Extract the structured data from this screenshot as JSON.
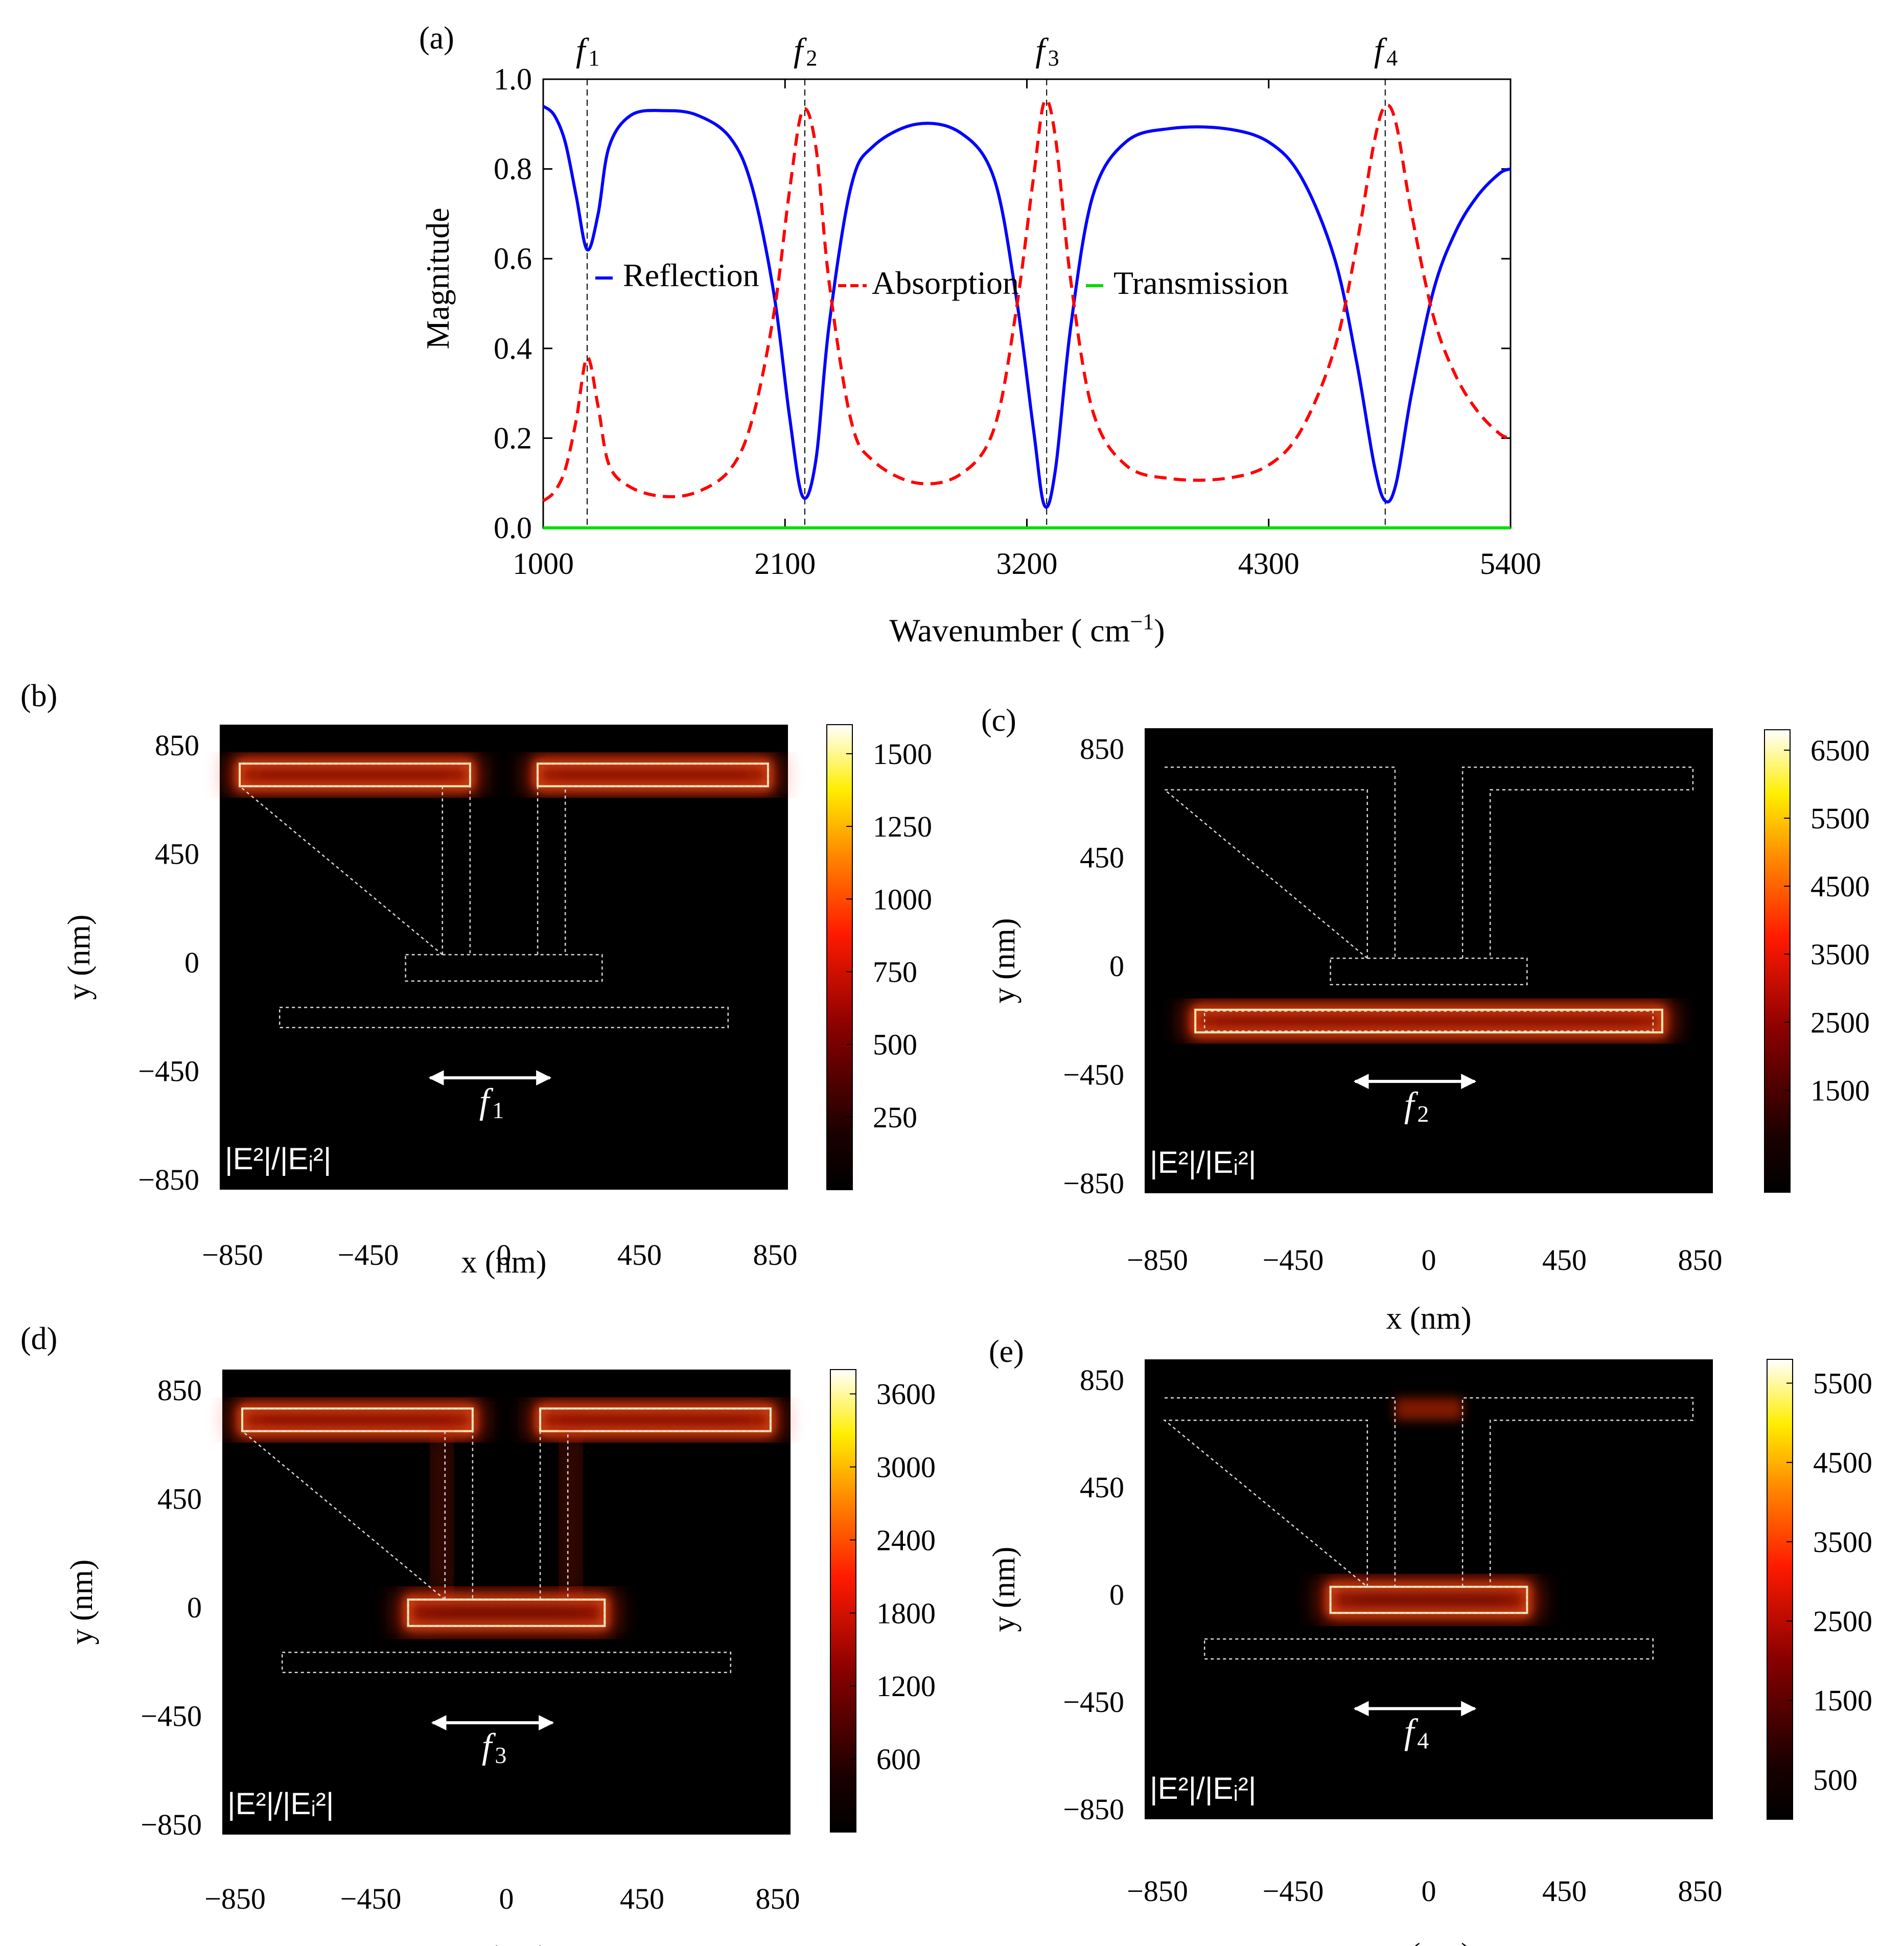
{
  "chart_data": [
    {
      "panel": "(a)",
      "type": "line",
      "xlabel": "Wavenumber ( cm",
      "xlabel_sup": "−1",
      "xlabel_end": ")",
      "ylabel": "Magnitude",
      "xlim": [
        1000,
        5400
      ],
      "ylim": [
        0,
        1
      ],
      "xticks": [
        1000,
        2100,
        3200,
        4300,
        5400
      ],
      "yticks": [
        "0.0",
        "0.2",
        "0.4",
        "0.6",
        "0.8",
        "1.0"
      ],
      "markers": [
        {
          "label": "f",
          "sub": "1",
          "x": 1200
        },
        {
          "label": "f",
          "sub": "2",
          "x": 2190
        },
        {
          "label": "f",
          "sub": "3",
          "x": 3290
        },
        {
          "label": "f",
          "sub": "4",
          "x": 4830
        }
      ],
      "series": [
        {
          "name": "Reflection",
          "color": "#0000ff",
          "style": "solid",
          "points": [
            [
              1000,
              0.94
            ],
            [
              1050,
              0.92
            ],
            [
              1100,
              0.86
            ],
            [
              1150,
              0.74
            ],
            [
              1200,
              0.62
            ],
            [
              1250,
              0.7
            ],
            [
              1300,
              0.85
            ],
            [
              1400,
              0.92
            ],
            [
              1550,
              0.93
            ],
            [
              1700,
              0.92
            ],
            [
              1850,
              0.87
            ],
            [
              1950,
              0.76
            ],
            [
              2050,
              0.52
            ],
            [
              2120,
              0.25
            ],
            [
              2180,
              0.07
            ],
            [
              2240,
              0.15
            ],
            [
              2300,
              0.45
            ],
            [
              2400,
              0.76
            ],
            [
              2500,
              0.85
            ],
            [
              2700,
              0.9
            ],
            [
              2900,
              0.88
            ],
            [
              3050,
              0.78
            ],
            [
              3150,
              0.52
            ],
            [
              3230,
              0.22
            ],
            [
              3280,
              0.05
            ],
            [
              3330,
              0.13
            ],
            [
              3400,
              0.45
            ],
            [
              3500,
              0.74
            ],
            [
              3650,
              0.86
            ],
            [
              3850,
              0.89
            ],
            [
              4100,
              0.89
            ],
            [
              4300,
              0.86
            ],
            [
              4450,
              0.78
            ],
            [
              4600,
              0.6
            ],
            [
              4700,
              0.37
            ],
            [
              4780,
              0.14
            ],
            [
              4830,
              0.06
            ],
            [
              4880,
              0.1
            ],
            [
              4950,
              0.3
            ],
            [
              5050,
              0.53
            ],
            [
              5150,
              0.66
            ],
            [
              5250,
              0.74
            ],
            [
              5350,
              0.79
            ],
            [
              5400,
              0.8
            ]
          ]
        },
        {
          "name": "Absorption",
          "color": "#ff0000",
          "style": "dashed",
          "points": [
            [
              1000,
              0.06
            ],
            [
              1050,
              0.08
            ],
            [
              1100,
              0.13
            ],
            [
              1150,
              0.24
            ],
            [
              1200,
              0.38
            ],
            [
              1250,
              0.27
            ],
            [
              1300,
              0.14
            ],
            [
              1400,
              0.09
            ],
            [
              1550,
              0.07
            ],
            [
              1700,
              0.08
            ],
            [
              1850,
              0.13
            ],
            [
              1950,
              0.24
            ],
            [
              2050,
              0.48
            ],
            [
              2120,
              0.75
            ],
            [
              2180,
              0.93
            ],
            [
              2240,
              0.85
            ],
            [
              2300,
              0.55
            ],
            [
              2400,
              0.24
            ],
            [
              2500,
              0.15
            ],
            [
              2700,
              0.1
            ],
            [
              2900,
              0.12
            ],
            [
              3050,
              0.22
            ],
            [
              3150,
              0.48
            ],
            [
              3230,
              0.78
            ],
            [
              3280,
              0.95
            ],
            [
              3330,
              0.87
            ],
            [
              3400,
              0.55
            ],
            [
              3500,
              0.26
            ],
            [
              3650,
              0.14
            ],
            [
              3850,
              0.11
            ],
            [
              4100,
              0.11
            ],
            [
              4300,
              0.14
            ],
            [
              4450,
              0.22
            ],
            [
              4600,
              0.4
            ],
            [
              4700,
              0.63
            ],
            [
              4780,
              0.86
            ],
            [
              4830,
              0.94
            ],
            [
              4880,
              0.9
            ],
            [
              4950,
              0.7
            ],
            [
              5050,
              0.47
            ],
            [
              5150,
              0.34
            ],
            [
              5250,
              0.26
            ],
            [
              5350,
              0.21
            ],
            [
              5400,
              0.2
            ]
          ]
        },
        {
          "name": "Transmission",
          "color": "#00dd00",
          "style": "solid",
          "points": [
            [
              1000,
              0.0
            ],
            [
              5400,
              0.0
            ]
          ]
        }
      ]
    },
    {
      "panel": "(b)",
      "type": "heatmap",
      "freq_label": "f",
      "freq_sub": "1",
      "field_label": "|E²|/|Eᵢ²|",
      "xlabel": "x (nm)",
      "ylabel": "y (nm)",
      "xticks": [
        "−850",
        "−450",
        "0",
        "450",
        "850"
      ],
      "yticks": [
        "850",
        "450",
        "0",
        "−450",
        "−850"
      ],
      "colorbar_ticks": [
        "1500",
        "1250",
        "1000",
        "750",
        "500",
        "250"
      ],
      "colorbar_max": 1600,
      "hotspot": "top-arms"
    },
    {
      "panel": "(c)",
      "type": "heatmap",
      "freq_label": "f",
      "freq_sub": "2",
      "field_label": "|E²|/|Eᵢ²|",
      "xlabel": "x (nm)",
      "ylabel": "y (nm)",
      "xticks": [
        "−850",
        "−450",
        "0",
        "450",
        "850"
      ],
      "yticks": [
        "850",
        "450",
        "0",
        "−450",
        "−850"
      ],
      "colorbar_ticks": [
        "6500",
        "5500",
        "4500",
        "3500",
        "2500",
        "1500"
      ],
      "colorbar_max": 6800,
      "hotspot": "bottom-bar"
    },
    {
      "panel": "(d)",
      "type": "heatmap",
      "freq_label": "f",
      "freq_sub": "3",
      "field_label": "|E²|/|Eᵢ²|",
      "xlabel": "x (nm)",
      "ylabel": "y (nm)",
      "xticks": [
        "−850",
        "−450",
        "0",
        "450",
        "850"
      ],
      "yticks": [
        "850",
        "450",
        "0",
        "−450",
        "−850"
      ],
      "colorbar_ticks": [
        "3600",
        "3000",
        "2400",
        "1800",
        "1200",
        "600"
      ],
      "colorbar_max": 3800,
      "hotspot": "top-arms-stem"
    },
    {
      "panel": "(e)",
      "type": "heatmap",
      "freq_label": "f",
      "freq_sub": "4",
      "field_label": "|E²|/|Eᵢ²|",
      "xlabel": "x (nm)",
      "ylabel": "y (nm)",
      "xticks": [
        "−850",
        "−450",
        "0",
        "450",
        "850"
      ],
      "yticks": [
        "850",
        "450",
        "0",
        "−450",
        "−850"
      ],
      "colorbar_ticks": [
        "5500",
        "4500",
        "3500",
        "2500",
        "1500",
        "500"
      ],
      "colorbar_max": 5800,
      "hotspot": "foot"
    }
  ]
}
